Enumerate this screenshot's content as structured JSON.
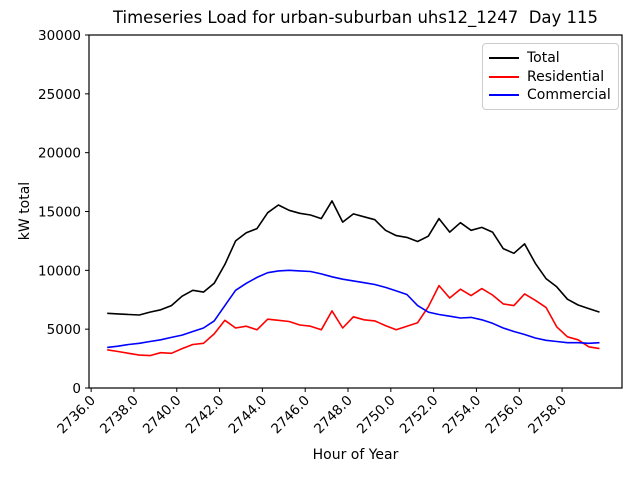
{
  "chart_data": {
    "type": "line",
    "title": "Timeseries Load for urban-suburban uhs12_1247  Day 115",
    "xlabel": "Hour of Year",
    "ylabel": "kW total",
    "xlim": [
      2735.9,
      2760.8
    ],
    "ylim": [
      0,
      30000
    ],
    "grid": false,
    "legend_position": "upper right",
    "xticks": {
      "values": [
        2736,
        2738,
        2740,
        2742,
        2744,
        2746,
        2748,
        2750,
        2752,
        2754,
        2756,
        2758
      ],
      "labels": [
        "2736.0",
        "2738.0",
        "2740.0",
        "2742.0",
        "2744.0",
        "2746.0",
        "2748.0",
        "2750.0",
        "2752.0",
        "2754.0",
        "2756.0",
        "2758.0"
      ]
    },
    "yticks": {
      "values": [
        0,
        5000,
        10000,
        15000,
        20000,
        25000,
        30000
      ],
      "labels": [
        "0",
        "5000",
        "10000",
        "15000",
        "20000",
        "25000",
        "30000"
      ]
    },
    "x": [
      2736.75,
      2737.25,
      2737.75,
      2738.25,
      2738.75,
      2739.25,
      2739.75,
      2740.25,
      2740.75,
      2741.25,
      2741.75,
      2742.25,
      2742.75,
      2743.25,
      2743.75,
      2744.25,
      2744.75,
      2745.25,
      2745.75,
      2746.25,
      2746.75,
      2747.25,
      2747.75,
      2748.25,
      2748.75,
      2749.25,
      2749.75,
      2750.25,
      2750.75,
      2751.25,
      2751.75,
      2752.25,
      2752.75,
      2753.25,
      2753.75,
      2754.25,
      2754.75,
      2755.25,
      2755.75,
      2756.25,
      2756.75,
      2757.25,
      2757.75,
      2758.25,
      2758.75,
      2759.25,
      2759.75
    ],
    "series": [
      {
        "name": "Total",
        "color": "#000000",
        "values": [
          6350,
          6300,
          6250,
          6200,
          6450,
          6650,
          7000,
          7800,
          8300,
          8150,
          8900,
          10500,
          12500,
          13200,
          13550,
          14900,
          15550,
          15100,
          14850,
          14700,
          14400,
          15900,
          14100,
          14800,
          14550,
          14300,
          13400,
          12950,
          12800,
          12450,
          12900,
          14400,
          13250,
          14050,
          13400,
          13650,
          13250,
          11850,
          11450,
          12250,
          10600,
          9300,
          8600,
          7550,
          7050,
          6750,
          6450
        ]
      },
      {
        "name": "Residential",
        "color": "#ff0000",
        "values": [
          3250,
          3100,
          2950,
          2800,
          2750,
          3000,
          2950,
          3350,
          3700,
          3800,
          4600,
          5750,
          5100,
          5250,
          4950,
          5850,
          5750,
          5650,
          5350,
          5250,
          4950,
          6550,
          5100,
          6050,
          5800,
          5700,
          5300,
          4950,
          5250,
          5550,
          6900,
          8700,
          7650,
          8400,
          7850,
          8450,
          7900,
          7150,
          7000,
          8000,
          7450,
          6850,
          5200,
          4350,
          4100,
          3500,
          3350
        ]
      },
      {
        "name": "Commercial",
        "color": "#0000ff",
        "values": [
          3450,
          3550,
          3700,
          3800,
          3950,
          4100,
          4300,
          4500,
          4800,
          5100,
          5700,
          7000,
          8300,
          8900,
          9400,
          9800,
          9950,
          10000,
          9950,
          9900,
          9700,
          9450,
          9250,
          9100,
          8950,
          8800,
          8550,
          8250,
          7950,
          7000,
          6450,
          6250,
          6100,
          5950,
          6000,
          5800,
          5500,
          5100,
          4800,
          4550,
          4250,
          4050,
          3950,
          3850,
          3850,
          3800,
          3850
        ]
      }
    ]
  }
}
